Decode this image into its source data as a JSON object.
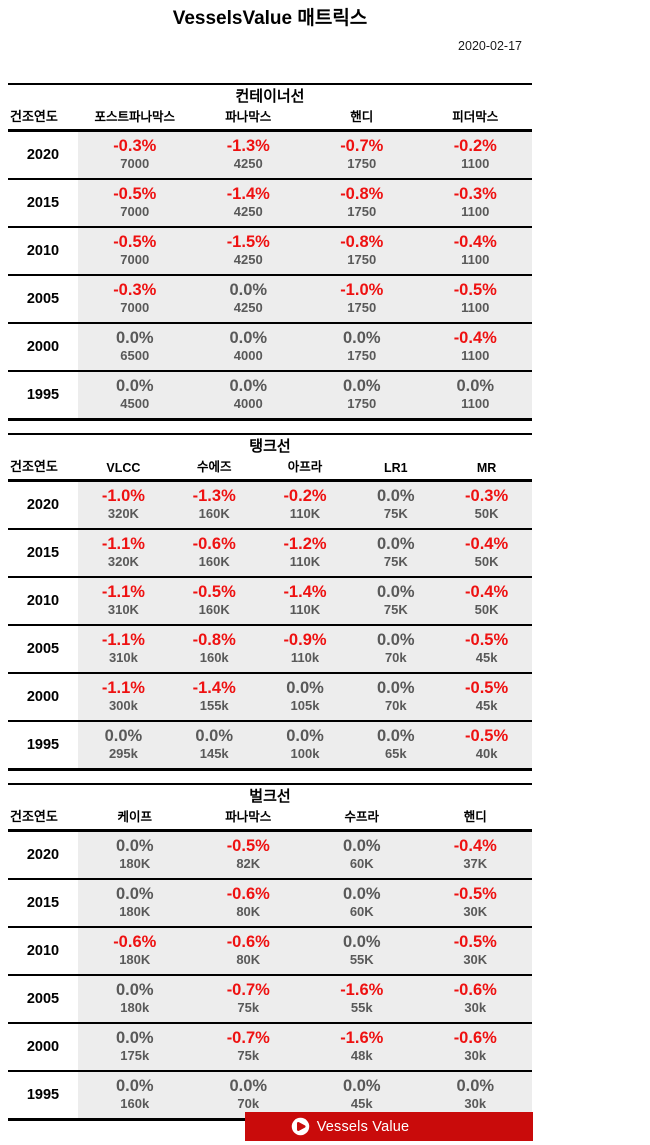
{
  "header": {
    "title": "VesselsValue 매트릭스",
    "date": "2020-02-17"
  },
  "tables": [
    {
      "title": "컨테이너선",
      "year_header": "건조연도",
      "columns": [
        "포스트파나막스",
        "파나막스",
        "핸디",
        "피더막스"
      ],
      "rows": [
        {
          "year": "2020",
          "pcts": [
            "-0.3%",
            "-1.3%",
            "-0.7%",
            "-0.2%"
          ],
          "vals": [
            "7000",
            "4250",
            "1750",
            "1100"
          ]
        },
        {
          "year": "2015",
          "pcts": [
            "-0.5%",
            "-1.4%",
            "-0.8%",
            "-0.3%"
          ],
          "vals": [
            "7000",
            "4250",
            "1750",
            "1100"
          ]
        },
        {
          "year": "2010",
          "pcts": [
            "-0.5%",
            "-1.5%",
            "-0.8%",
            "-0.4%"
          ],
          "vals": [
            "7000",
            "4250",
            "1750",
            "1100"
          ]
        },
        {
          "year": "2005",
          "pcts": [
            "-0.3%",
            "0.0%",
            "-1.0%",
            "-0.5%"
          ],
          "vals": [
            "7000",
            "4250",
            "1750",
            "1100"
          ]
        },
        {
          "year": "2000",
          "pcts": [
            "0.0%",
            "0.0%",
            "0.0%",
            "-0.4%"
          ],
          "vals": [
            "6500",
            "4000",
            "1750",
            "1100"
          ]
        },
        {
          "year": "1995",
          "pcts": [
            "0.0%",
            "0.0%",
            "0.0%",
            "0.0%"
          ],
          "vals": [
            "4500",
            "4000",
            "1750",
            "1100"
          ]
        }
      ]
    },
    {
      "title": "탱크선",
      "year_header": "건조연도",
      "columns": [
        "VLCC",
        "수에즈",
        "아프라",
        "LR1",
        "MR"
      ],
      "rows": [
        {
          "year": "2020",
          "pcts": [
            "-1.0%",
            "-1.3%",
            "-0.2%",
            "0.0%",
            "-0.3%"
          ],
          "vals": [
            "320K",
            "160K",
            "110K",
            "75K",
            "50K"
          ]
        },
        {
          "year": "2015",
          "pcts": [
            "-1.1%",
            "-0.6%",
            "-1.2%",
            "0.0%",
            "-0.4%"
          ],
          "vals": [
            "320K",
            "160K",
            "110K",
            "75K",
            "50K"
          ]
        },
        {
          "year": "2010",
          "pcts": [
            "-1.1%",
            "-0.5%",
            "-1.4%",
            "0.0%",
            "-0.4%"
          ],
          "vals": [
            "310K",
            "160K",
            "110K",
            "75K",
            "50K"
          ]
        },
        {
          "year": "2005",
          "pcts": [
            "-1.1%",
            "-0.8%",
            "-0.9%",
            "0.0%",
            "-0.5%"
          ],
          "vals": [
            "310k",
            "160k",
            "110k",
            "70k",
            "45k"
          ]
        },
        {
          "year": "2000",
          "pcts": [
            "-1.1%",
            "-1.4%",
            "0.0%",
            "0.0%",
            "-0.5%"
          ],
          "vals": [
            "300k",
            "155k",
            "105k",
            "70k",
            "45k"
          ]
        },
        {
          "year": "1995",
          "pcts": [
            "0.0%",
            "0.0%",
            "0.0%",
            "0.0%",
            "-0.5%"
          ],
          "vals": [
            "295k",
            "145k",
            "100k",
            "65k",
            "40k"
          ]
        }
      ]
    },
    {
      "title": "벌크선",
      "year_header": "건조연도",
      "columns": [
        "케이프",
        "파나막스",
        "수프라",
        "핸디"
      ],
      "rows": [
        {
          "year": "2020",
          "pcts": [
            "0.0%",
            "-0.5%",
            "0.0%",
            "-0.4%"
          ],
          "vals": [
            "180K",
            "82K",
            "60K",
            "37K"
          ]
        },
        {
          "year": "2015",
          "pcts": [
            "0.0%",
            "-0.6%",
            "0.0%",
            "-0.5%"
          ],
          "vals": [
            "180K",
            "80K",
            "60K",
            "30K"
          ]
        },
        {
          "year": "2010",
          "pcts": [
            "-0.6%",
            "-0.6%",
            "0.0%",
            "-0.5%"
          ],
          "vals": [
            "180K",
            "80K",
            "55K",
            "30K"
          ]
        },
        {
          "year": "2005",
          "pcts": [
            "0.0%",
            "-0.7%",
            "-1.6%",
            "-0.6%"
          ],
          "vals": [
            "180k",
            "75k",
            "55k",
            "30k"
          ]
        },
        {
          "year": "2000",
          "pcts": [
            "0.0%",
            "-0.7%",
            "-1.6%",
            "-0.6%"
          ],
          "vals": [
            "175k",
            "75k",
            "48k",
            "30k"
          ]
        },
        {
          "year": "1995",
          "pcts": [
            "0.0%",
            "0.0%",
            "0.0%",
            "0.0%"
          ],
          "vals": [
            "160k",
            "70k",
            "45k",
            "30k"
          ]
        }
      ]
    }
  ],
  "footer": {
    "brand": "Vessels Value"
  },
  "colors": {
    "negative_pct": "#EE1111",
    "zero_pct": "#595959",
    "value_text": "#595959",
    "cell_bg": "#EDEDED",
    "brand_red": "#C90B0B"
  }
}
